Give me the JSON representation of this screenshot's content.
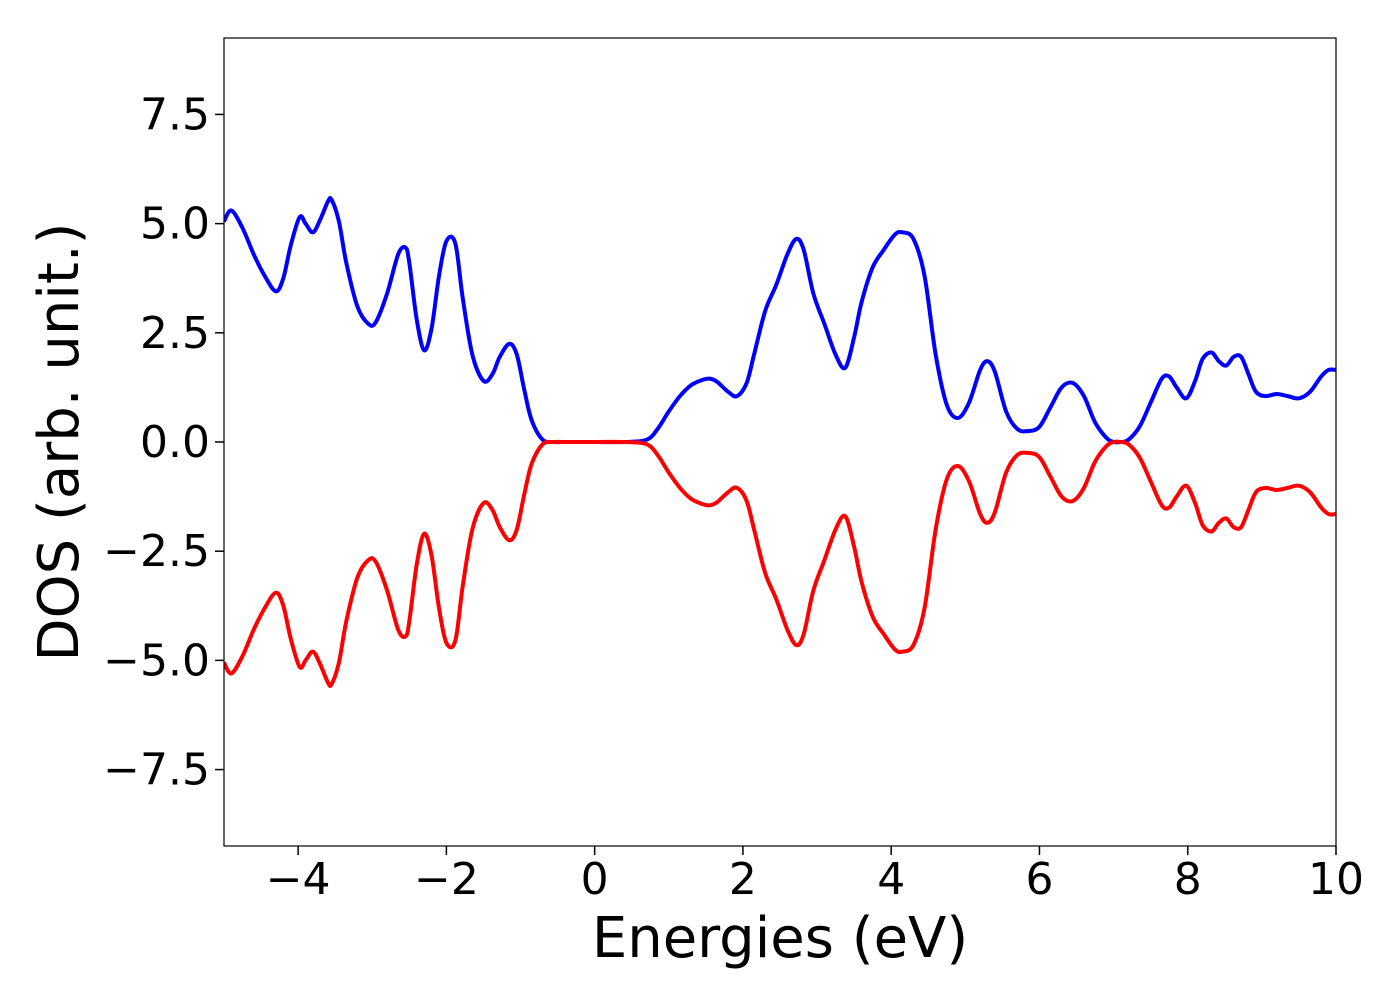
{
  "chart_data": {
    "type": "line",
    "xlabel": "Energies (eV)",
    "ylabel": "DOS (arb. unit.)",
    "xlim": [
      -5,
      10
    ],
    "ylim": [
      -9.25,
      9.25
    ],
    "grid": false,
    "legend": "none",
    "xticks": [
      -4,
      -2,
      0,
      2,
      4,
      6,
      8,
      10
    ],
    "xtick_labels": [
      "−4",
      "−2",
      "0",
      "2",
      "4",
      "6",
      "8",
      "10"
    ],
    "yticks": [
      -7.5,
      -5.0,
      -2.5,
      0.0,
      2.5,
      5.0,
      7.5
    ],
    "ytick_labels": [
      "−7.5",
      "−5.0",
      "−2.5",
      "0.0",
      "2.5",
      "5.0",
      "7.5"
    ],
    "series": [
      {
        "color": "#0000ff",
        "x": [
          -5.0,
          -4.9,
          -4.75,
          -4.6,
          -4.45,
          -4.3,
          -4.2,
          -4.1,
          -3.98,
          -3.9,
          -3.8,
          -3.7,
          -3.6,
          -3.55,
          -3.45,
          -3.35,
          -3.2,
          -3.05,
          -2.95,
          -2.8,
          -2.65,
          -2.55,
          -2.5,
          -2.4,
          -2.3,
          -2.2,
          -2.1,
          -2.0,
          -1.88,
          -1.78,
          -1.65,
          -1.5,
          -1.38,
          -1.28,
          -1.15,
          -1.05,
          -0.95,
          -0.85,
          -0.7,
          -0.55,
          -0.4,
          0.0,
          0.4,
          0.7,
          0.85,
          1.0,
          1.15,
          1.3,
          1.45,
          1.55,
          1.65,
          1.8,
          1.92,
          2.05,
          2.15,
          2.3,
          2.45,
          2.6,
          2.72,
          2.82,
          2.95,
          3.1,
          3.25,
          3.38,
          3.5,
          3.6,
          3.75,
          3.9,
          4.05,
          4.15,
          4.3,
          4.45,
          4.6,
          4.75,
          4.9,
          5.05,
          5.2,
          5.3,
          5.4,
          5.55,
          5.7,
          5.85,
          6.0,
          6.15,
          6.3,
          6.45,
          6.6,
          6.75,
          6.9,
          7.0,
          7.1,
          7.2,
          7.35,
          7.5,
          7.65,
          7.75,
          7.85,
          7.98,
          8.1,
          8.2,
          8.32,
          8.42,
          8.52,
          8.62,
          8.72,
          8.82,
          8.92,
          9.05,
          9.2,
          9.35,
          9.5,
          9.65,
          9.8,
          9.9,
          10.0
        ],
        "y": [
          5.05,
          5.3,
          4.9,
          4.3,
          3.8,
          3.45,
          3.75,
          4.5,
          5.15,
          5.0,
          4.8,
          5.1,
          5.5,
          5.55,
          5.05,
          4.1,
          3.1,
          2.7,
          2.75,
          3.4,
          4.3,
          4.45,
          4.1,
          2.8,
          2.1,
          2.6,
          3.8,
          4.6,
          4.55,
          3.3,
          2.0,
          1.4,
          1.55,
          1.95,
          2.25,
          2.0,
          1.2,
          0.5,
          0.05,
          0.0,
          0.0,
          0.0,
          0.0,
          0.05,
          0.3,
          0.7,
          1.05,
          1.3,
          1.42,
          1.45,
          1.38,
          1.15,
          1.05,
          1.35,
          2.0,
          3.0,
          3.6,
          4.3,
          4.65,
          4.4,
          3.4,
          2.7,
          2.0,
          1.7,
          2.4,
          3.2,
          4.0,
          4.4,
          4.75,
          4.8,
          4.65,
          3.8,
          2.0,
          0.85,
          0.55,
          0.9,
          1.65,
          1.85,
          1.6,
          0.7,
          0.3,
          0.25,
          0.35,
          0.8,
          1.25,
          1.35,
          1.05,
          0.45,
          0.1,
          0.0,
          0.0,
          0.05,
          0.35,
          0.9,
          1.45,
          1.5,
          1.25,
          1.0,
          1.4,
          1.9,
          2.05,
          1.85,
          1.75,
          1.95,
          1.95,
          1.55,
          1.15,
          1.05,
          1.1,
          1.05,
          1.0,
          1.15,
          1.5,
          1.65,
          1.65
        ]
      },
      {
        "color": "#ff0000",
        "x": [
          -5.0,
          -4.9,
          -4.75,
          -4.6,
          -4.45,
          -4.3,
          -4.2,
          -4.1,
          -3.98,
          -3.9,
          -3.8,
          -3.7,
          -3.6,
          -3.55,
          -3.45,
          -3.35,
          -3.2,
          -3.05,
          -2.95,
          -2.8,
          -2.65,
          -2.55,
          -2.5,
          -2.4,
          -2.3,
          -2.2,
          -2.1,
          -2.0,
          -1.88,
          -1.78,
          -1.65,
          -1.5,
          -1.38,
          -1.28,
          -1.15,
          -1.05,
          -0.95,
          -0.85,
          -0.7,
          -0.55,
          -0.4,
          0.0,
          0.4,
          0.7,
          0.85,
          1.0,
          1.15,
          1.3,
          1.45,
          1.55,
          1.65,
          1.8,
          1.92,
          2.05,
          2.15,
          2.3,
          2.45,
          2.6,
          2.72,
          2.82,
          2.95,
          3.1,
          3.25,
          3.38,
          3.5,
          3.6,
          3.75,
          3.9,
          4.05,
          4.15,
          4.3,
          4.45,
          4.6,
          4.75,
          4.9,
          5.05,
          5.2,
          5.3,
          5.4,
          5.55,
          5.7,
          5.85,
          6.0,
          6.15,
          6.3,
          6.45,
          6.6,
          6.75,
          6.9,
          7.0,
          7.1,
          7.2,
          7.35,
          7.5,
          7.65,
          7.75,
          7.85,
          7.98,
          8.1,
          8.2,
          8.32,
          8.42,
          8.52,
          8.62,
          8.72,
          8.82,
          8.92,
          9.05,
          9.2,
          9.35,
          9.5,
          9.65,
          9.8,
          9.9,
          10.0
        ],
        "y": [
          -5.05,
          -5.3,
          -4.9,
          -4.3,
          -3.8,
          -3.45,
          -3.75,
          -4.5,
          -5.15,
          -5.0,
          -4.8,
          -5.1,
          -5.5,
          -5.55,
          -5.05,
          -4.1,
          -3.1,
          -2.7,
          -2.75,
          -3.4,
          -4.3,
          -4.45,
          -4.1,
          -2.8,
          -2.1,
          -2.6,
          -3.8,
          -4.6,
          -4.55,
          -3.3,
          -2.0,
          -1.4,
          -1.55,
          -1.95,
          -2.25,
          -2.0,
          -1.2,
          -0.5,
          -0.05,
          0.0,
          0.0,
          0.0,
          0.0,
          -0.05,
          -0.3,
          -0.7,
          -1.05,
          -1.3,
          -1.42,
          -1.45,
          -1.38,
          -1.15,
          -1.05,
          -1.35,
          -2.0,
          -3.0,
          -3.6,
          -4.3,
          -4.65,
          -4.4,
          -3.4,
          -2.7,
          -2.0,
          -1.7,
          -2.4,
          -3.2,
          -4.0,
          -4.4,
          -4.75,
          -4.8,
          -4.65,
          -3.8,
          -2.0,
          -0.85,
          -0.55,
          -0.9,
          -1.65,
          -1.85,
          -1.6,
          -0.7,
          -0.3,
          -0.25,
          -0.35,
          -0.8,
          -1.25,
          -1.35,
          -1.05,
          -0.45,
          -0.1,
          0.0,
          0.0,
          -0.05,
          -0.35,
          -0.9,
          -1.45,
          -1.5,
          -1.25,
          -1.0,
          -1.4,
          -1.9,
          -2.05,
          -1.85,
          -1.75,
          -1.95,
          -1.95,
          -1.55,
          -1.15,
          -1.05,
          -1.1,
          -1.05,
          -1.0,
          -1.15,
          -1.5,
          -1.65,
          -1.65
        ]
      }
    ]
  }
}
